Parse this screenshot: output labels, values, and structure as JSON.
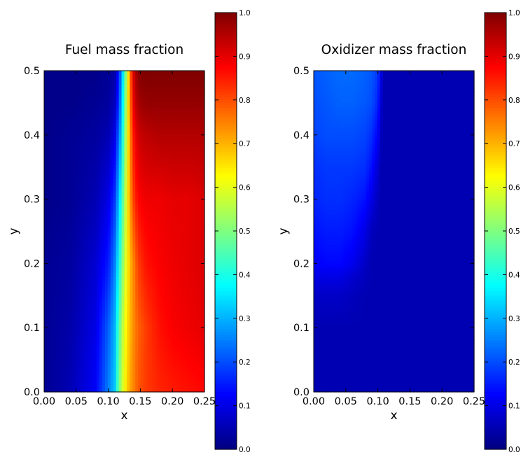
{
  "chart_data": [
    {
      "type": "heatmap",
      "title": "Fuel mass fraction",
      "xlabel": "x",
      "ylabel": "y",
      "xlim": [
        0.0,
        0.25
      ],
      "ylim": [
        0.0,
        0.5
      ],
      "xticks": [
        "0.00",
        "0.05",
        "0.10",
        "0.15",
        "0.20",
        "0.25"
      ],
      "yticks": [
        "0.0",
        "0.1",
        "0.2",
        "0.3",
        "0.4",
        "0.5"
      ],
      "colormap": "jet",
      "colorbar": {
        "range": [
          0.0,
          1.0
        ],
        "ticks": [
          "0.0",
          "0.1",
          "0.2",
          "0.3",
          "0.4",
          "0.5",
          "0.6",
          "0.7",
          "0.8",
          "0.9",
          "1.0"
        ]
      },
      "field": {
        "x": [
          0.0,
          0.04,
          0.08,
          0.1,
          0.11,
          0.115,
          0.12,
          0.125,
          0.13,
          0.135,
          0.14,
          0.145,
          0.15,
          0.16,
          0.18,
          0.2,
          0.225,
          0.25
        ],
        "y": [
          0.0,
          0.1,
          0.2,
          0.3,
          0.4,
          0.45,
          0.5
        ],
        "z": [
          [
            0.02,
            0.05,
            0.12,
            0.25,
            0.32,
            0.45,
            0.55,
            0.62,
            0.68,
            0.72,
            0.75,
            0.78,
            0.8,
            0.82,
            0.84,
            0.85,
            0.86,
            0.87
          ],
          [
            0.02,
            0.04,
            0.1,
            0.22,
            0.3,
            0.42,
            0.52,
            0.6,
            0.66,
            0.7,
            0.74,
            0.77,
            0.79,
            0.82,
            0.86,
            0.88,
            0.89,
            0.9
          ],
          [
            0.02,
            0.03,
            0.08,
            0.15,
            0.25,
            0.35,
            0.46,
            0.56,
            0.64,
            0.7,
            0.75,
            0.8,
            0.83,
            0.86,
            0.88,
            0.89,
            0.9,
            0.91
          ],
          [
            0.01,
            0.02,
            0.05,
            0.1,
            0.18,
            0.28,
            0.4,
            0.52,
            0.64,
            0.74,
            0.82,
            0.86,
            0.88,
            0.89,
            0.89,
            0.9,
            0.9,
            0.91
          ],
          [
            0.01,
            0.02,
            0.03,
            0.05,
            0.1,
            0.2,
            0.32,
            0.48,
            0.62,
            0.76,
            0.86,
            0.91,
            0.93,
            0.94,
            0.95,
            0.95,
            0.95,
            0.95
          ],
          [
            0.01,
            0.01,
            0.02,
            0.03,
            0.06,
            0.15,
            0.28,
            0.45,
            0.62,
            0.78,
            0.9,
            0.95,
            0.97,
            0.98,
            0.98,
            0.98,
            0.98,
            0.98
          ],
          [
            0.01,
            0.01,
            0.01,
            0.02,
            0.04,
            0.12,
            0.25,
            0.42,
            0.6,
            0.8,
            0.92,
            0.98,
            1.0,
            1.0,
            1.0,
            1.0,
            1.0,
            1.0
          ]
        ]
      }
    },
    {
      "type": "heatmap",
      "title": "Oxidizer mass fraction",
      "xlabel": "x",
      "ylabel": "y",
      "xlim": [
        0.0,
        0.25
      ],
      "ylim": [
        0.0,
        0.5
      ],
      "xticks": [
        "0.00",
        "0.05",
        "0.10",
        "0.15",
        "0.20",
        "0.25"
      ],
      "yticks": [
        "0.0",
        "0.1",
        "0.2",
        "0.3",
        "0.4",
        "0.5"
      ],
      "colormap": "jet",
      "colorbar": {
        "range": [
          0.0,
          1.0
        ],
        "ticks": [
          "0.0",
          "0.1",
          "0.2",
          "0.3",
          "0.4",
          "0.5",
          "0.6",
          "0.7",
          "0.8",
          "0.9",
          "1.0"
        ]
      },
      "field": {
        "x": [
          0.0,
          0.02,
          0.04,
          0.06,
          0.08,
          0.09,
          0.1,
          0.105,
          0.11,
          0.12,
          0.15,
          0.2,
          0.25
        ],
        "y": [
          0.0,
          0.1,
          0.15,
          0.18,
          0.2,
          0.25,
          0.3,
          0.35,
          0.4,
          0.45,
          0.5
        ],
        "z": [
          [
            0.05,
            0.05,
            0.05,
            0.05,
            0.05,
            0.05,
            0.05,
            0.05,
            0.05,
            0.05,
            0.05,
            0.05,
            0.05
          ],
          [
            0.05,
            0.05,
            0.05,
            0.05,
            0.05,
            0.05,
            0.05,
            0.05,
            0.05,
            0.05,
            0.05,
            0.05,
            0.05
          ],
          [
            0.07,
            0.07,
            0.07,
            0.06,
            0.05,
            0.05,
            0.05,
            0.05,
            0.05,
            0.05,
            0.05,
            0.05,
            0.05
          ],
          [
            0.1,
            0.1,
            0.1,
            0.08,
            0.06,
            0.05,
            0.05,
            0.05,
            0.05,
            0.05,
            0.05,
            0.05,
            0.05
          ],
          [
            0.12,
            0.13,
            0.13,
            0.11,
            0.07,
            0.05,
            0.05,
            0.05,
            0.05,
            0.05,
            0.05,
            0.05,
            0.05
          ],
          [
            0.14,
            0.15,
            0.15,
            0.14,
            0.1,
            0.06,
            0.05,
            0.05,
            0.05,
            0.05,
            0.05,
            0.05,
            0.05
          ],
          [
            0.16,
            0.17,
            0.17,
            0.16,
            0.14,
            0.1,
            0.06,
            0.05,
            0.05,
            0.05,
            0.05,
            0.05,
            0.05
          ],
          [
            0.17,
            0.18,
            0.18,
            0.18,
            0.17,
            0.14,
            0.08,
            0.05,
            0.05,
            0.05,
            0.05,
            0.05,
            0.05
          ],
          [
            0.19,
            0.2,
            0.2,
            0.2,
            0.19,
            0.17,
            0.12,
            0.06,
            0.05,
            0.05,
            0.05,
            0.05,
            0.05
          ],
          [
            0.2,
            0.21,
            0.22,
            0.22,
            0.21,
            0.2,
            0.16,
            0.08,
            0.05,
            0.05,
            0.05,
            0.05,
            0.05
          ],
          [
            0.21,
            0.22,
            0.23,
            0.23,
            0.22,
            0.21,
            0.18,
            0.1,
            0.05,
            0.05,
            0.05,
            0.05,
            0.05
          ]
        ]
      }
    }
  ]
}
